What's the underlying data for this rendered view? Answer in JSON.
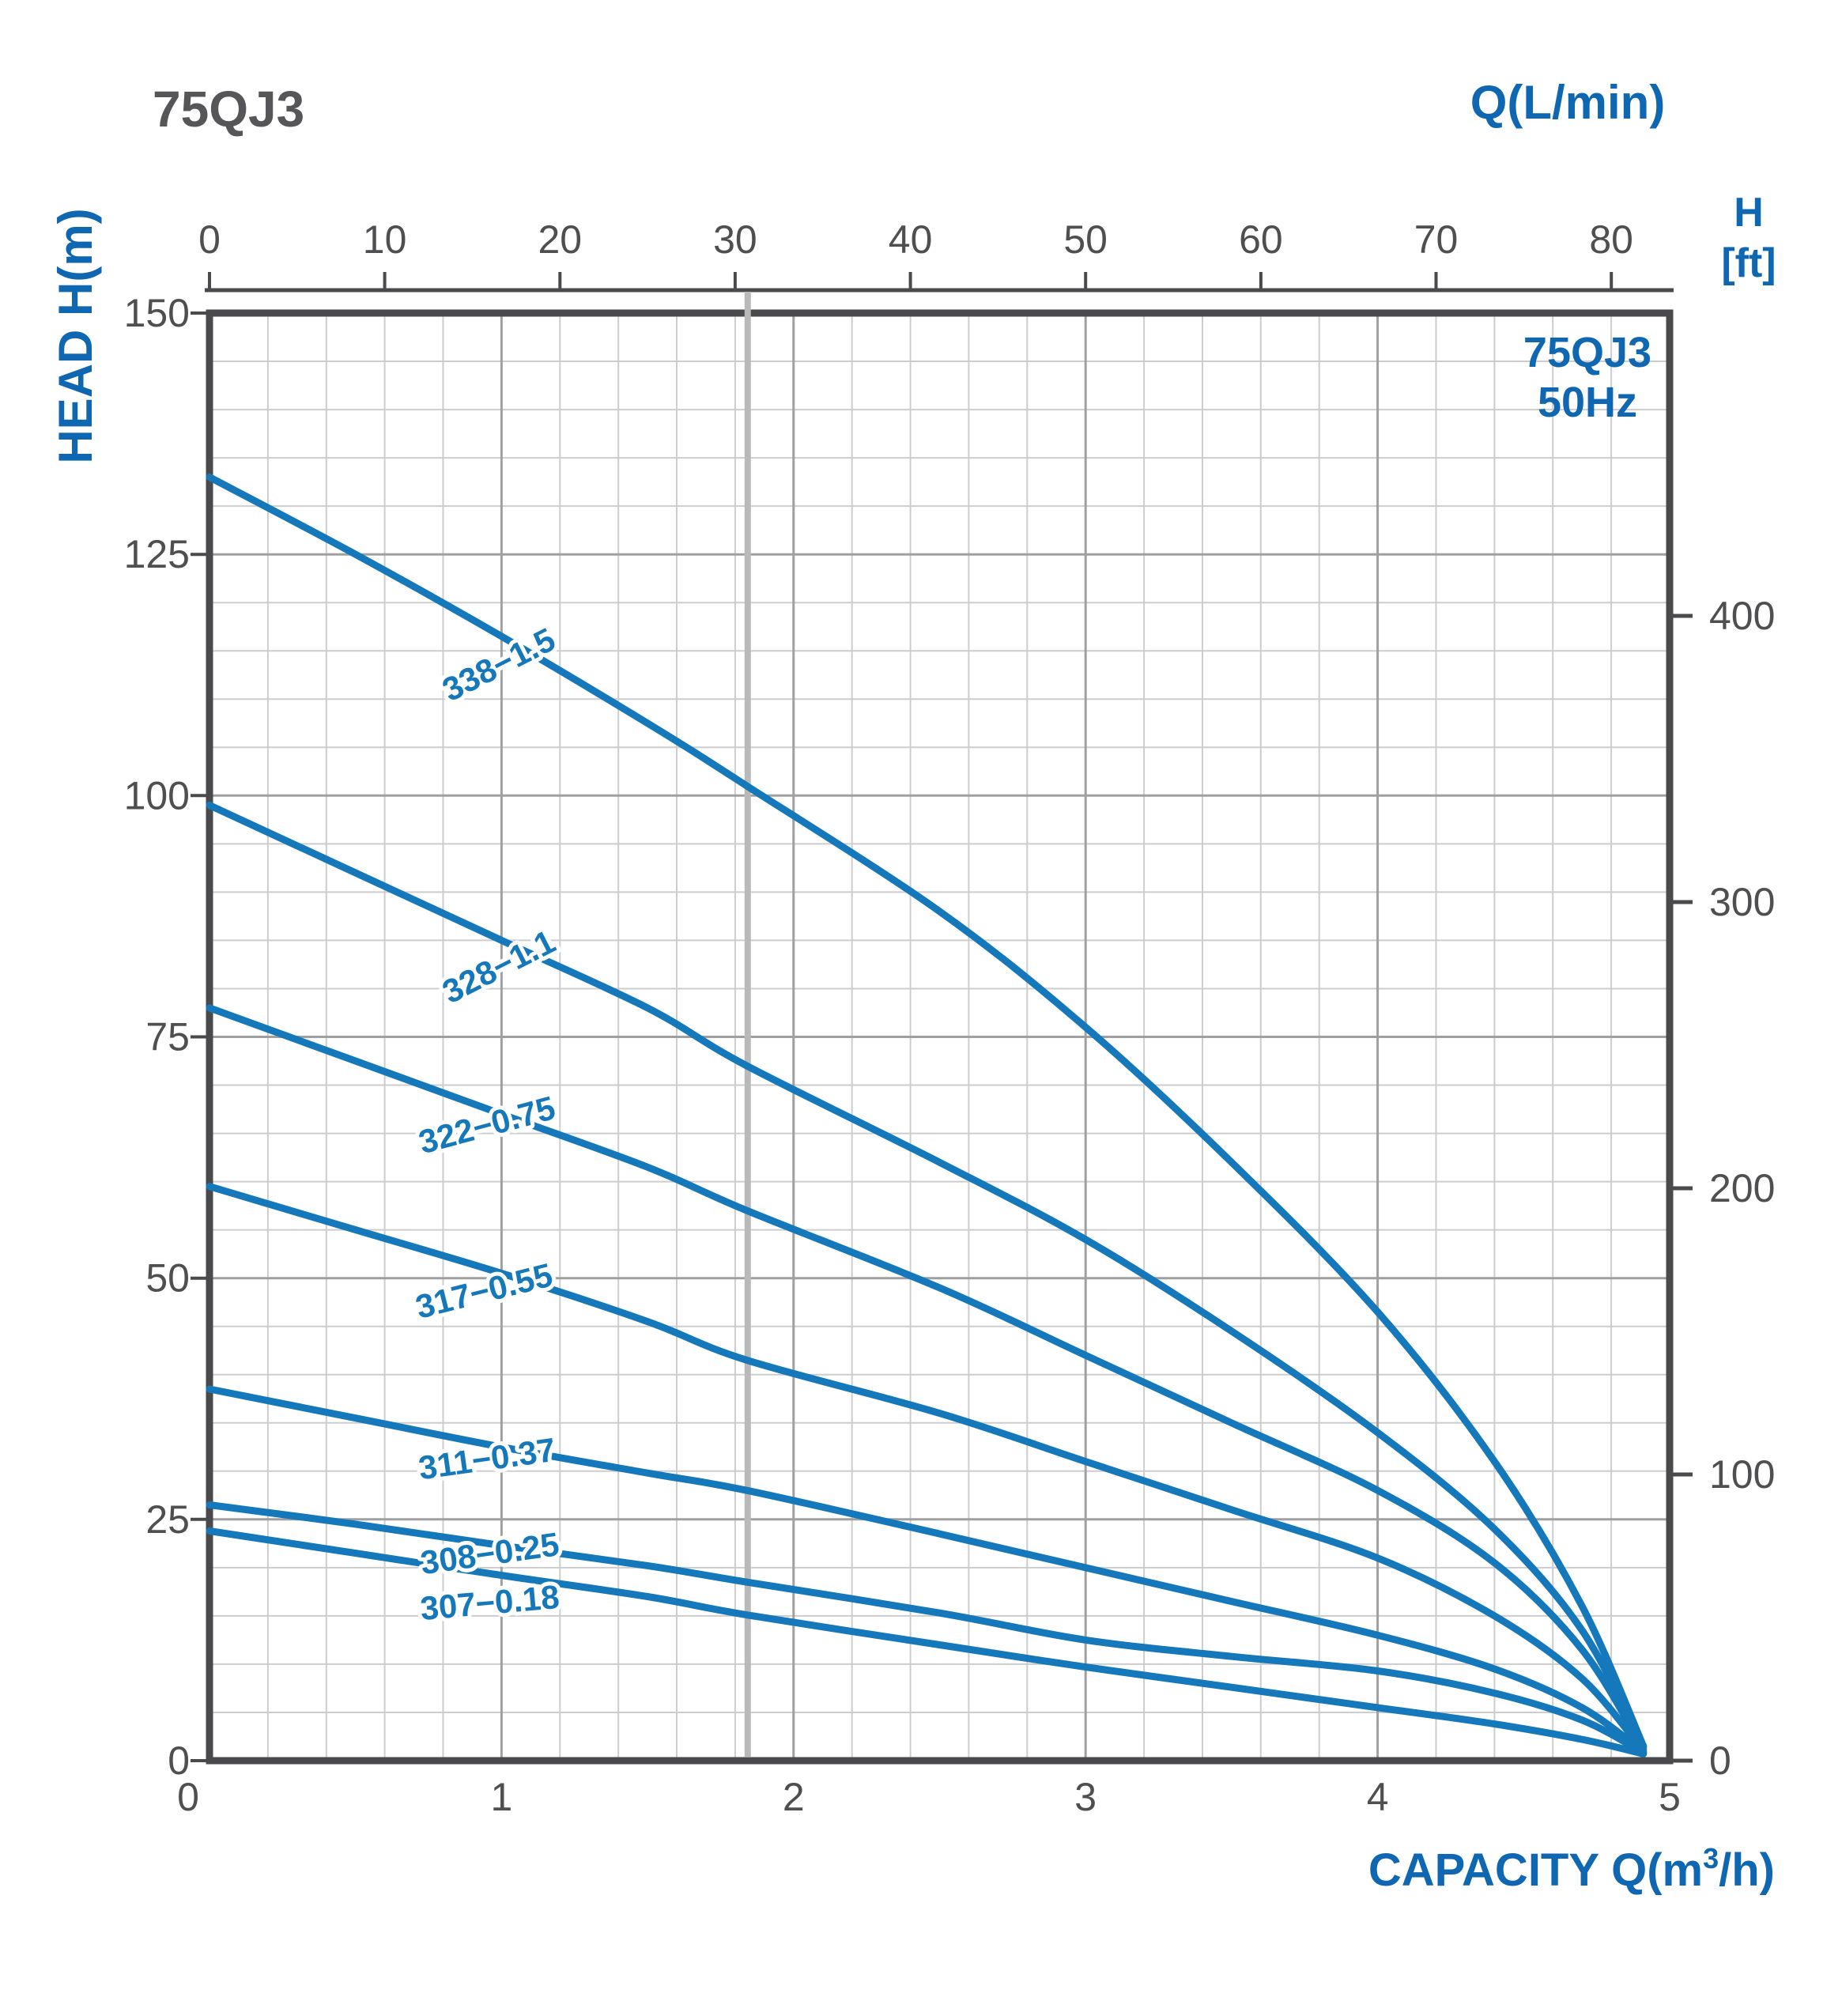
{
  "page_title": "75QJ3",
  "colors": {
    "curve": "#1478bb",
    "blue_text": "#0f67b1",
    "dark": "#4a4a4c",
    "text_gray": "#4f4f51",
    "grid_minor": "#cdcdcd",
    "grid_major": "#a0a0a0",
    "reference_line": "#b9b9b9",
    "background": "#ffffff"
  },
  "chart_data": {
    "type": "line",
    "title": "75QJ3",
    "legend": {
      "line1": "75QJ3",
      "line2": "50Hz",
      "position": "top-right-inside"
    },
    "top_axis": {
      "label": "Q(L/min)",
      "unit": "L/min",
      "ticks": [
        0,
        10,
        20,
        30,
        40,
        50,
        60,
        70,
        80
      ],
      "max": 83.33
    },
    "x_axis": {
      "label": "CAPACITY Q(m³/h)",
      "label_prefix": "CAPACITY Q(m",
      "label_sup": "3",
      "label_suffix": "/h)",
      "unit": "m³/h",
      "ticks": [
        0,
        1,
        2,
        3,
        4,
        5
      ],
      "minor_step": 0.2,
      "range": [
        0,
        5
      ]
    },
    "y_axis": {
      "label": "HEAD H(m)",
      "unit": "m",
      "ticks": [
        150,
        125,
        100,
        75,
        50,
        25,
        0
      ],
      "minor_step": 5,
      "range": [
        0,
        150
      ]
    },
    "right_axis": {
      "label_top": "H",
      "label_bottom": "[ft]",
      "unit": "ft",
      "ticks": [
        400,
        300,
        200,
        100,
        0
      ]
    },
    "reference_line": {
      "q": 1.843
    },
    "grid": true,
    "series": [
      {
        "name": "338-1.5",
        "label": "338−1.5",
        "label_anchor": {
          "q": 0.99,
          "h": 113.6,
          "rotation": -27
        },
        "points": [
          [
            0,
            133
          ],
          [
            0.5,
            125
          ],
          [
            1,
            116.5
          ],
          [
            1.5,
            107.5
          ],
          [
            1.84,
            101
          ],
          [
            2.5,
            88
          ],
          [
            3,
            76
          ],
          [
            3.5,
            62
          ],
          [
            4,
            46.5
          ],
          [
            4.4,
            31
          ],
          [
            4.7,
            16
          ],
          [
            4.91,
            1.5
          ]
        ]
      },
      {
        "name": "328-1.1",
        "label": "328−1.1",
        "label_anchor": {
          "q": 0.99,
          "h": 82.3,
          "rotation": -27
        },
        "points": [
          [
            0,
            99
          ],
          [
            0.5,
            92
          ],
          [
            1,
            85
          ],
          [
            1.5,
            78
          ],
          [
            1.84,
            72
          ],
          [
            2.5,
            62
          ],
          [
            3,
            54
          ],
          [
            3.5,
            44.5
          ],
          [
            4,
            34
          ],
          [
            4.4,
            24
          ],
          [
            4.7,
            13.5
          ],
          [
            4.91,
            1.4
          ]
        ]
      },
      {
        "name": "322-0.75",
        "label": "322−0.75",
        "label_anchor": {
          "q": 0.95,
          "h": 65.9,
          "rotation": -15
        },
        "points": [
          [
            0,
            78
          ],
          [
            0.5,
            72.5
          ],
          [
            1,
            67
          ],
          [
            1.5,
            61.5
          ],
          [
            1.84,
            57
          ],
          [
            2.5,
            49
          ],
          [
            3,
            42
          ],
          [
            3.5,
            35
          ],
          [
            4,
            28
          ],
          [
            4.4,
            20.5
          ],
          [
            4.7,
            11.5
          ],
          [
            4.91,
            1.2
          ]
        ]
      },
      {
        "name": "317-0.55",
        "label": "317−0.55",
        "label_anchor": {
          "q": 0.94,
          "h": 48.7,
          "rotation": -14
        },
        "points": [
          [
            0,
            59.5
          ],
          [
            0.5,
            55
          ],
          [
            1,
            50.5
          ],
          [
            1.5,
            45.5
          ],
          [
            1.84,
            41.5
          ],
          [
            2.5,
            36
          ],
          [
            3,
            31
          ],
          [
            3.5,
            26
          ],
          [
            4,
            21
          ],
          [
            4.4,
            15
          ],
          [
            4.7,
            8.5
          ],
          [
            4.91,
            1
          ]
        ]
      },
      {
        "name": "311-0.37",
        "label": "311−0.37",
        "label_anchor": {
          "q": 0.95,
          "h": 31.3,
          "rotation": -8
        },
        "points": [
          [
            0,
            38.5
          ],
          [
            0.5,
            35.5
          ],
          [
            1,
            32.5
          ],
          [
            1.5,
            29.8
          ],
          [
            1.84,
            28
          ],
          [
            2.5,
            23.5
          ],
          [
            3,
            20
          ],
          [
            3.5,
            16.5
          ],
          [
            4,
            13
          ],
          [
            4.4,
            9.5
          ],
          [
            4.7,
            5.5
          ],
          [
            4.91,
            0.9
          ]
        ]
      },
      {
        "name": "308-0.25",
        "label": "308−0.25",
        "label_anchor": {
          "q": 0.96,
          "h": 21.5,
          "rotation": -8
        },
        "points": [
          [
            0,
            26.5
          ],
          [
            0.5,
            24.5
          ],
          [
            1,
            22.3
          ],
          [
            1.5,
            20.2
          ],
          [
            1.84,
            18.5
          ],
          [
            2.5,
            15.3
          ],
          [
            3,
            12.5
          ],
          [
            3.5,
            10.8
          ],
          [
            4,
            9.3
          ],
          [
            4.4,
            7
          ],
          [
            4.7,
            4.2
          ],
          [
            4.91,
            0.8
          ]
        ]
      },
      {
        "name": "307-0.18",
        "label": "307−0.18",
        "label_anchor": {
          "q": 0.96,
          "h": 16.4,
          "rotation": -5
        },
        "points": [
          [
            0,
            23.8
          ],
          [
            0.5,
            21.5
          ],
          [
            1,
            19.2
          ],
          [
            1.5,
            17
          ],
          [
            1.84,
            15.1
          ],
          [
            2.5,
            12
          ],
          [
            3,
            9.7
          ],
          [
            3.5,
            7.6
          ],
          [
            4,
            5.5
          ],
          [
            4.4,
            3.8
          ],
          [
            4.7,
            2.2
          ],
          [
            4.91,
            0.7
          ]
        ]
      }
    ]
  }
}
